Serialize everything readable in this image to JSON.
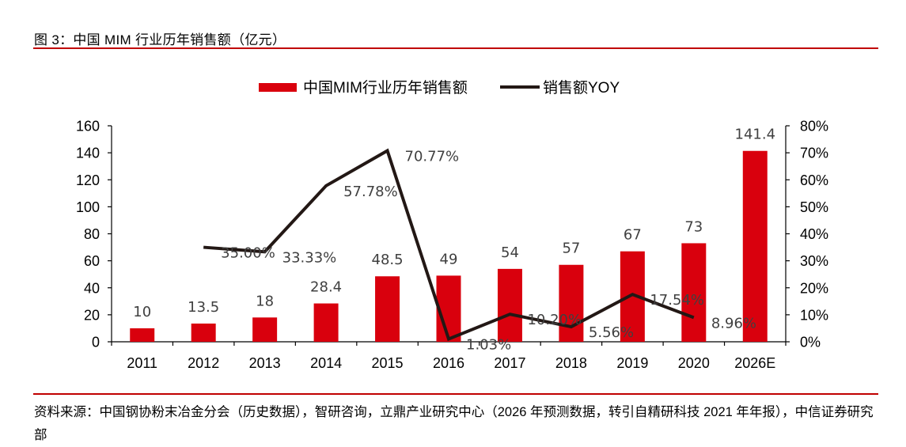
{
  "figure": {
    "title": "图 3：中国 MIM 行业历年销售额（亿元）",
    "source": "资料来源：中国钢协粉末冶金分会（历史数据），智研咨询，立鼎产业研究中心（2026 年预测数据，转引自精研科技 2021 年年报），中信证券研究部"
  },
  "colors": {
    "bar": "#d9000d",
    "line": "#231815",
    "rule": "#c00000",
    "data_label": "#404040"
  },
  "chart_data": {
    "type": "bar+line",
    "title": "图 3：中国 MIM 行业历年销售额（亿元）",
    "categories": [
      "2011",
      "2012",
      "2013",
      "2014",
      "2015",
      "2016",
      "2017",
      "2018",
      "2019",
      "2020",
      "2026E"
    ],
    "series": [
      {
        "name": "中国MIM行业历年销售额",
        "type": "bar",
        "axis": "left",
        "values": [
          10,
          13.5,
          18,
          28.4,
          48.5,
          49,
          54,
          57,
          67,
          73,
          141.4
        ],
        "labels": [
          "10",
          "13.5",
          "18",
          "28.4",
          "48.5",
          "49",
          "54",
          "57",
          "67",
          "73",
          "141.4"
        ]
      },
      {
        "name": "销售额YOY",
        "type": "line",
        "axis": "right",
        "values": [
          null,
          35.0,
          33.33,
          57.78,
          70.77,
          1.03,
          10.2,
          5.56,
          17.54,
          8.96,
          null
        ],
        "labels": [
          null,
          "35.00%",
          "33.33%",
          "57.78%",
          "70.77%",
          "1.03%",
          "10.20%",
          "5.56%",
          "17.54%",
          "8.96%",
          null
        ]
      }
    ],
    "y_left": {
      "min": 0,
      "max": 160,
      "step": 20,
      "ticks": [
        "0",
        "20",
        "40",
        "60",
        "80",
        "100",
        "120",
        "140",
        "160"
      ]
    },
    "y_right": {
      "min": 0,
      "max": 80,
      "step": 10,
      "ticks": [
        "0%",
        "10%",
        "20%",
        "30%",
        "40%",
        "50%",
        "60%",
        "70%",
        "80%"
      ]
    },
    "xlabel": "",
    "ylabel": "",
    "grid": false,
    "legend": {
      "position": "top-center",
      "entries": [
        "中国MIM行业历年销售额",
        "销售额YOY"
      ]
    }
  }
}
